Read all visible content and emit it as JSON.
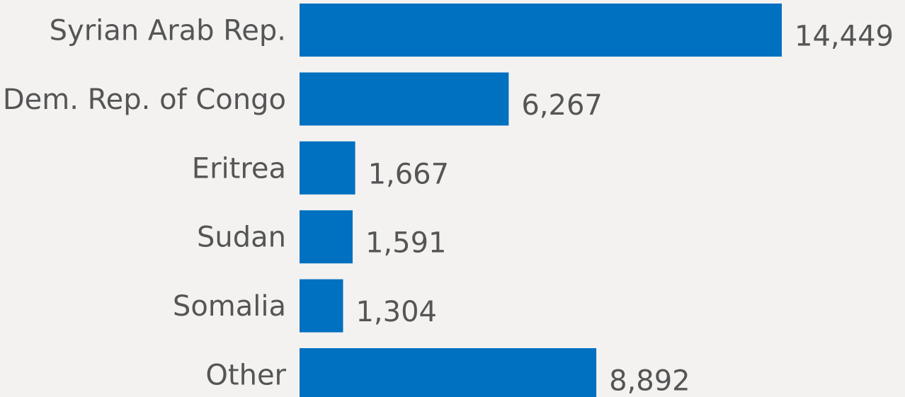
{
  "chart_data": {
    "type": "bar",
    "orientation": "horizontal",
    "categories": [
      "Syrian Arab Rep.",
      "Dem. Rep. of Congo",
      "Eritrea",
      "Sudan",
      "Somalia",
      "Other"
    ],
    "values": [
      14449,
      6267,
      1667,
      1591,
      1304,
      8892
    ],
    "value_labels": [
      "14,449",
      "6,267",
      "1,667",
      "1,591",
      "1,304",
      "8,892"
    ],
    "title": "",
    "xlabel": "",
    "ylabel": "",
    "xlim": [
      0,
      14449
    ],
    "grid": false,
    "legend": "none",
    "bar_color": "#0070c0",
    "text_color": "#555555",
    "background": "#f3f2f1"
  }
}
